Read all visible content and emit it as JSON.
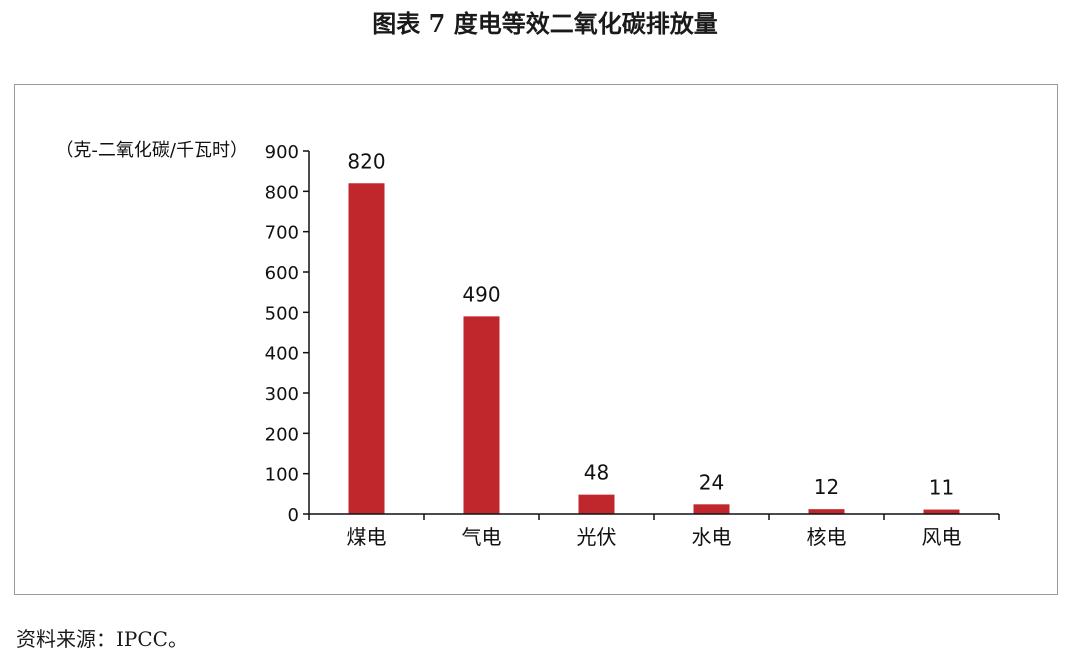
{
  "figure": {
    "title": "图表 7 度电等效二氧化碳排放量",
    "source": "资料来源：IPCC。"
  },
  "colors": {
    "bar": "#C0272D",
    "axis": "#111111",
    "frame": "#9a9a9a"
  },
  "chart_data": {
    "type": "bar",
    "title": "",
    "xlabel": "",
    "ylabel": "（克-二氧化碳/千瓦时）",
    "categories": [
      "煤电",
      "气电",
      "光伏",
      "水电",
      "核电",
      "风电"
    ],
    "values": [
      820,
      490,
      48,
      24,
      12,
      11
    ],
    "data_labels": [
      "820",
      "490",
      "48",
      "24",
      "12",
      "11"
    ],
    "ylim": [
      0,
      900
    ],
    "yticks": [
      0,
      100,
      200,
      300,
      400,
      500,
      600,
      700,
      800,
      900
    ],
    "grid": false,
    "legend": "none"
  }
}
